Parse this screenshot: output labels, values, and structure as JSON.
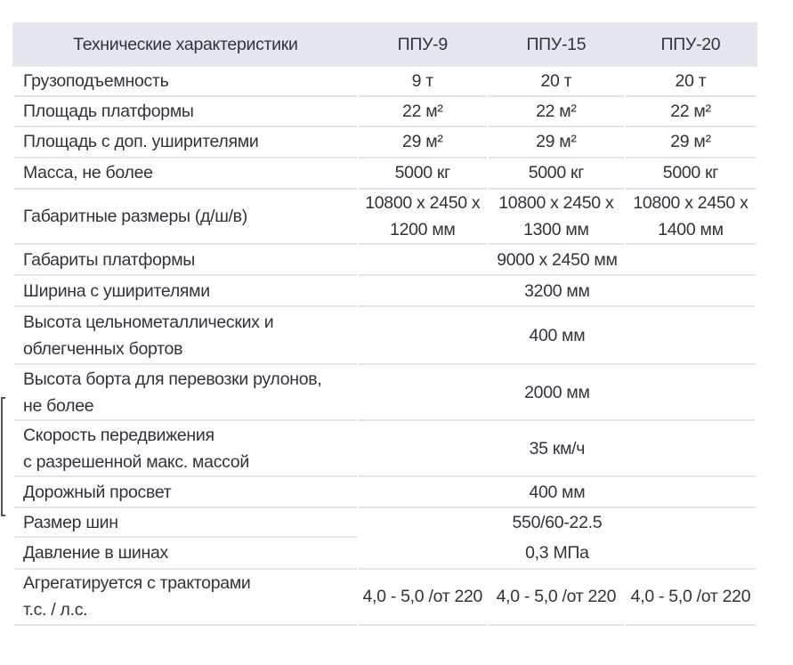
{
  "colors": {
    "header_background": "#e4e7ee",
    "divider": "#dfe4ef",
    "text": "#2f343c",
    "page_background": "#ffffff"
  },
  "table": {
    "header": {
      "label": "Технические характеристики",
      "columns": [
        "ППУ-9",
        "ППУ-15",
        "ППУ-20"
      ]
    },
    "rows": [
      {
        "label": "Грузоподъемность",
        "values": [
          "9 т",
          "20 т",
          "20 т"
        ]
      },
      {
        "label": "Площадь платформы",
        "values": [
          "22 м²",
          "22 м²",
          "22 м²"
        ]
      },
      {
        "label": "Площадь с доп. уширителями",
        "values": [
          "29 м²",
          "29 м²",
          "29 м²"
        ]
      },
      {
        "label": "Масса, не более",
        "values": [
          "5000 кг",
          "5000 кг",
          "5000 кг"
        ]
      },
      {
        "label": "Габаритные размеры (д/ш/в)",
        "values": [
          "10800 x 2450 x\n1200 мм",
          "10800 x 2450 x\n1300 мм",
          "10800 x 2450 x\n1400 мм"
        ]
      },
      {
        "label": "Габариты платформы",
        "value": "9000 x 2450 мм"
      },
      {
        "label": "Ширина с уширителями",
        "value": "3200 мм"
      },
      {
        "label": "Высота цельнометаллических и\nоблегченных бортов",
        "value": "400 мм"
      },
      {
        "label": "Высота борта для перевозки рулонов,\nне более",
        "value": "2000 мм"
      },
      {
        "label": "Скорость передвижения\nс разрешенной макс. массой",
        "value": "35 км/ч"
      },
      {
        "label": "Дорожный просвет",
        "value": "400 мм"
      },
      {
        "label": "Размер шин",
        "value": "550/60-22.5"
      },
      {
        "label": "Давление в шинах",
        "value": "0,3 МПа"
      },
      {
        "label": "Агрегатируется с тракторами\nт.с. / л.с.",
        "values": [
          "4,0 - 5,0 /от 220",
          "4,0 - 5,0 /от 220",
          "4,0 - 5,0 /от 220"
        ]
      }
    ]
  }
}
